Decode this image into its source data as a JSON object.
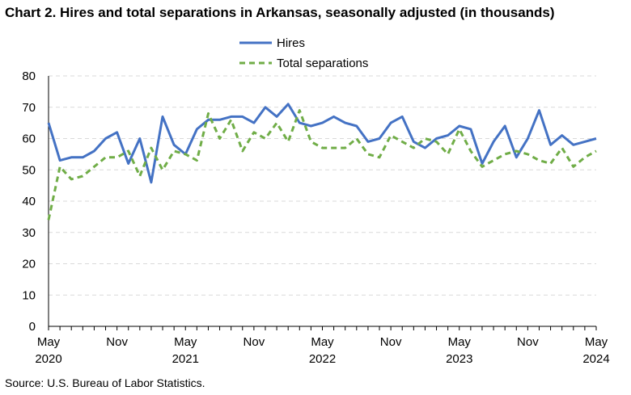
{
  "title": "Chart 2. Hires and total separations in Arkansas, seasonally adjusted (in thousands)",
  "source": "Source: U.S. Bureau of Labor Statistics.",
  "chart_data": {
    "type": "line",
    "title": "Chart 2. Hires and total separations in Arkansas, seasonally adjusted (in thousands)",
    "xlabel": "",
    "ylabel": "",
    "ylim": [
      0,
      80
    ],
    "yticks": [
      0,
      10,
      20,
      30,
      40,
      50,
      60,
      70,
      80
    ],
    "grid": true,
    "legend_position": "top-center",
    "x_tick_labels": [
      {
        "month": "May",
        "year": "2020",
        "index": 0
      },
      {
        "month": "Nov",
        "year": "",
        "index": 6
      },
      {
        "month": "May",
        "year": "2021",
        "index": 12
      },
      {
        "month": "Nov",
        "year": "",
        "index": 18
      },
      {
        "month": "May",
        "year": "2022",
        "index": 24
      },
      {
        "month": "Nov",
        "year": "",
        "index": 30
      },
      {
        "month": "May",
        "year": "2023",
        "index": 36
      },
      {
        "month": "Nov",
        "year": "",
        "index": 42
      },
      {
        "month": "May",
        "year": "2024",
        "index": 48
      }
    ],
    "x": [
      "May 2020",
      "Jun 2020",
      "Jul 2020",
      "Aug 2020",
      "Sep 2020",
      "Oct 2020",
      "Nov 2020",
      "Dec 2020",
      "Jan 2021",
      "Feb 2021",
      "Mar 2021",
      "Apr 2021",
      "May 2021",
      "Jun 2021",
      "Jul 2021",
      "Aug 2021",
      "Sep 2021",
      "Oct 2021",
      "Nov 2021",
      "Dec 2021",
      "Jan 2022",
      "Feb 2022",
      "Mar 2022",
      "Apr 2022",
      "May 2022",
      "Jun 2022",
      "Jul 2022",
      "Aug 2022",
      "Sep 2022",
      "Oct 2022",
      "Nov 2022",
      "Dec 2022",
      "Jan 2023",
      "Feb 2023",
      "Mar 2023",
      "Apr 2023",
      "May 2023",
      "Jun 2023",
      "Jul 2023",
      "Aug 2023",
      "Sep 2023",
      "Oct 2023",
      "Nov 2023",
      "Dec 2023",
      "Jan 2024",
      "Feb 2024",
      "Mar 2024",
      "Apr 2024",
      "May 2024"
    ],
    "series": [
      {
        "name": "Hires",
        "color": "#4472C4",
        "style": "solid",
        "values": [
          65,
          53,
          54,
          54,
          56,
          60,
          62,
          52,
          60,
          46,
          67,
          58,
          55,
          63,
          66,
          66,
          67,
          67,
          65,
          70,
          67,
          71,
          65,
          64,
          65,
          67,
          65,
          64,
          59,
          60,
          65,
          67,
          59,
          57,
          60,
          61,
          64,
          63,
          52,
          59,
          64,
          54,
          60,
          69,
          58,
          61,
          58,
          59,
          60
        ]
      },
      {
        "name": "Total separations",
        "color": "#70AD47",
        "style": "dashed",
        "values": [
          34,
          51,
          47,
          48,
          51,
          54,
          54,
          56,
          48,
          57,
          50,
          56,
          55,
          53,
          68,
          60,
          66,
          56,
          62,
          60,
          65,
          59,
          69,
          59,
          57,
          57,
          57,
          60,
          55,
          54,
          61,
          59,
          57,
          60,
          59,
          55,
          63,
          56,
          51,
          53,
          55,
          56,
          55,
          53,
          52,
          57,
          51,
          54,
          56
        ]
      }
    ]
  }
}
